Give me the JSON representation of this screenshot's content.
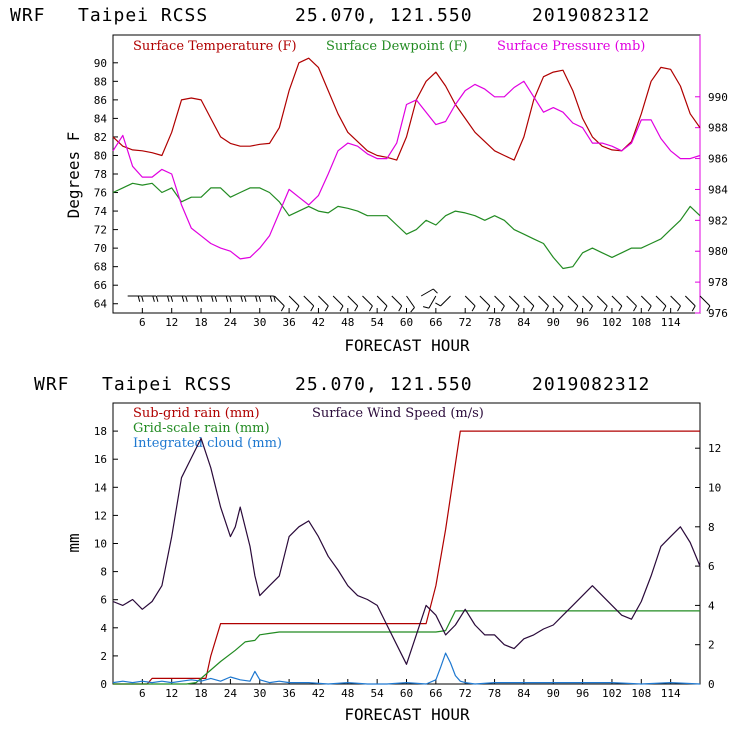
{
  "colors": {
    "temp": "#b00000",
    "dew": "#228b22",
    "press": "#e000e0",
    "wind": "#2a0a3a",
    "subgrid": "#b00000",
    "gridscale": "#228b22",
    "cloud": "#1e78d0",
    "axis": "#000000",
    "right_axis_top": "#e000e0"
  },
  "chart_data": [
    {
      "type": "line",
      "header": {
        "model": "WRF",
        "site": "Taipei RCSS",
        "coords": "25.070, 121.550",
        "init": "2019082312"
      },
      "xlabel": "FORECAST HOUR",
      "ylabel": "Degrees F",
      "xlim": [
        0,
        120
      ],
      "ylim": [
        63,
        93
      ],
      "ylim_right": [
        976,
        994
      ],
      "xticks": [
        6,
        12,
        18,
        24,
        30,
        36,
        42,
        48,
        54,
        60,
        66,
        72,
        78,
        84,
        90,
        96,
        102,
        108,
        114
      ],
      "xtick_labels": [
        "6",
        "12",
        "18",
        "24",
        "30",
        "36",
        "42",
        "48",
        "54",
        "60",
        "66",
        "72",
        "78",
        "84",
        "90",
        "96",
        "102",
        "108",
        "114"
      ],
      "yticks": [
        64,
        66,
        68,
        70,
        72,
        74,
        76,
        78,
        80,
        82,
        84,
        86,
        88,
        90
      ],
      "ytick_labels": [
        "64",
        "66",
        "68",
        "70",
        "72",
        "74",
        "76",
        "78",
        "80",
        "82",
        "84",
        "86",
        "88",
        "90"
      ],
      "yticks_right": [
        976,
        978,
        980,
        982,
        984,
        986,
        988,
        990
      ],
      "ytick_labels_right": [
        "976",
        "978",
        "980",
        "982",
        "984",
        "986",
        "988",
        "990"
      ],
      "series": [
        {
          "name": "Surface Temperature (F)",
          "axis": "left",
          "x": [
            0,
            2,
            4,
            6,
            8,
            10,
            12,
            14,
            16,
            18,
            20,
            22,
            24,
            26,
            28,
            30,
            32,
            34,
            36,
            38,
            40,
            42,
            44,
            46,
            48,
            50,
            52,
            54,
            56,
            58,
            60,
            62,
            64,
            66,
            68,
            70,
            72,
            74,
            76,
            78,
            80,
            82,
            84,
            86,
            88,
            90,
            92,
            94,
            96,
            98,
            100,
            102,
            104,
            106,
            108,
            110,
            112,
            114,
            116,
            118,
            120
          ],
          "values": [
            82.0,
            81.0,
            80.6,
            80.5,
            80.3,
            80.0,
            82.5,
            86.0,
            86.2,
            86.0,
            84.0,
            82.0,
            81.3,
            81.0,
            81.0,
            81.2,
            81.3,
            83.0,
            87.0,
            90.0,
            90.5,
            89.5,
            87.0,
            84.5,
            82.5,
            81.5,
            80.5,
            80.0,
            79.8,
            79.5,
            82.0,
            86.0,
            88.0,
            89.0,
            87.5,
            85.5,
            84.0,
            82.5,
            81.5,
            80.5,
            80.0,
            79.5,
            82.0,
            86.0,
            88.5,
            89.0,
            89.2,
            87.0,
            84.0,
            82.0,
            81.0,
            80.6,
            80.5,
            81.5,
            84.5,
            88.0,
            89.5,
            89.3,
            87.5,
            84.5,
            83.0
          ]
        },
        {
          "name": "Surface Dewpoint (F)",
          "axis": "left",
          "x": [
            0,
            2,
            4,
            6,
            8,
            10,
            12,
            14,
            16,
            18,
            20,
            22,
            24,
            26,
            28,
            30,
            32,
            34,
            36,
            38,
            40,
            42,
            44,
            46,
            48,
            50,
            52,
            54,
            56,
            58,
            60,
            62,
            64,
            66,
            68,
            70,
            72,
            74,
            76,
            78,
            80,
            82,
            84,
            86,
            88,
            90,
            92,
            94,
            96,
            98,
            100,
            102,
            104,
            106,
            108,
            110,
            112,
            114,
            116,
            118,
            120
          ],
          "values": [
            76.0,
            76.5,
            77.0,
            76.8,
            77.0,
            76.0,
            76.5,
            75.0,
            75.5,
            75.5,
            76.5,
            76.5,
            75.5,
            76.0,
            76.5,
            76.5,
            76.0,
            75.0,
            73.5,
            74.0,
            74.5,
            74.0,
            73.8,
            74.5,
            74.3,
            74.0,
            73.5,
            73.5,
            73.5,
            72.5,
            71.5,
            72.0,
            73.0,
            72.5,
            73.5,
            74.0,
            73.8,
            73.5,
            73.0,
            73.5,
            73.0,
            72.0,
            71.5,
            71.0,
            70.5,
            69.0,
            67.8,
            68.0,
            69.5,
            70.0,
            69.5,
            69.0,
            69.5,
            70.0,
            70.0,
            70.5,
            71.0,
            72.0,
            73.0,
            74.5,
            73.5
          ]
        },
        {
          "name": "Surface Pressure (mb)",
          "axis": "right",
          "x": [
            0,
            2,
            4,
            6,
            8,
            10,
            12,
            14,
            16,
            18,
            20,
            22,
            24,
            26,
            28,
            30,
            32,
            34,
            36,
            38,
            40,
            42,
            44,
            46,
            48,
            50,
            52,
            54,
            56,
            58,
            60,
            62,
            64,
            66,
            68,
            70,
            72,
            74,
            76,
            78,
            80,
            82,
            84,
            86,
            88,
            90,
            92,
            94,
            96,
            98,
            100,
            102,
            104,
            106,
            108,
            110,
            112,
            114,
            116,
            118,
            120
          ],
          "values": [
            986.5,
            987.5,
            985.5,
            984.8,
            984.8,
            985.3,
            985.0,
            983.0,
            981.5,
            981.0,
            980.5,
            980.2,
            980.0,
            979.5,
            979.6,
            980.2,
            981.0,
            982.5,
            984.0,
            983.5,
            983.0,
            983.6,
            985.0,
            986.5,
            987.0,
            986.8,
            986.3,
            986.0,
            986.0,
            987.0,
            989.5,
            989.8,
            989.0,
            988.2,
            988.4,
            989.5,
            990.4,
            990.8,
            990.5,
            990.0,
            990.0,
            990.6,
            991.0,
            990.0,
            989.0,
            989.3,
            989.0,
            988.3,
            988.0,
            987.0,
            987.0,
            986.8,
            986.5,
            987.0,
            988.5,
            988.5,
            987.3,
            986.5,
            986.0,
            986.0,
            986.2
          ]
        }
      ],
      "wind_barbs": {
        "type": "barbs",
        "x": [
          3,
          6,
          9,
          12,
          15,
          18,
          21,
          24,
          27,
          30,
          33,
          36,
          39,
          42,
          45,
          48,
          51,
          54,
          57,
          60,
          63,
          66,
          69,
          72,
          75,
          78,
          81,
          84,
          87,
          90,
          93,
          96,
          99,
          102,
          105,
          108,
          111,
          114,
          117,
          120
        ],
        "direction_deg": [
          90,
          90,
          90,
          90,
          90,
          90,
          90,
          90,
          90,
          90,
          135,
          135,
          135,
          135,
          135,
          135,
          135,
          135,
          135,
          145,
          60,
          210,
          225,
          135,
          135,
          135,
          135,
          135,
          135,
          135,
          135,
          135,
          135,
          135,
          135,
          135,
          135,
          135,
          135,
          135
        ],
        "speed_kt": [
          20,
          20,
          20,
          20,
          20,
          20,
          20,
          20,
          20,
          20,
          10,
          10,
          10,
          10,
          10,
          10,
          10,
          10,
          10,
          10,
          10,
          10,
          10,
          10,
          10,
          10,
          10,
          10,
          10,
          10,
          10,
          10,
          10,
          10,
          10,
          10,
          10,
          10,
          10,
          10
        ]
      }
    },
    {
      "type": "line",
      "header": {
        "model": "WRF",
        "site": "Taipei RCSS",
        "coords": "25.070, 121.550",
        "init": "2019082312"
      },
      "xlabel": "FORECAST HOUR",
      "ylabel": "mm",
      "xlim": [
        0,
        120
      ],
      "ylim": [
        0,
        20
      ],
      "ylim_right": [
        0,
        14.3
      ],
      "xticks": [
        6,
        12,
        18,
        24,
        30,
        36,
        42,
        48,
        54,
        60,
        66,
        72,
        78,
        84,
        90,
        96,
        102,
        108,
        114
      ],
      "xtick_labels": [
        "6",
        "12",
        "18",
        "24",
        "30",
        "36",
        "42",
        "48",
        "54",
        "60",
        "66",
        "72",
        "78",
        "84",
        "90",
        "96",
        "102",
        "108",
        "114"
      ],
      "yticks": [
        0,
        2,
        4,
        6,
        8,
        10,
        12,
        14,
        16,
        18
      ],
      "ytick_labels": [
        "0",
        "2",
        "4",
        "6",
        "8",
        "10",
        "12",
        "14",
        "16",
        "18"
      ],
      "yticks_right": [
        0,
        2,
        4,
        6,
        8,
        10,
        12
      ],
      "ytick_labels_right": [
        "0",
        "2",
        "4",
        "6",
        "8",
        "10",
        "12"
      ],
      "series": [
        {
          "name": "Sub-grid rain (mm)",
          "axis": "left",
          "x": [
            0,
            7,
            8,
            19,
            20,
            22,
            58,
            64,
            66,
            68,
            71,
            120
          ],
          "values": [
            0,
            0,
            0.4,
            0.4,
            2.0,
            4.3,
            4.3,
            4.3,
            7.0,
            11.0,
            18.0,
            18.0
          ]
        },
        {
          "name": "Grid-scale rain (mm)",
          "axis": "left",
          "x": [
            0,
            15,
            17,
            20,
            22,
            25,
            27,
            29,
            30,
            32,
            34,
            60,
            66,
            68,
            70,
            120
          ],
          "values": [
            0,
            0,
            0.1,
            1.0,
            1.6,
            2.4,
            3.0,
            3.1,
            3.5,
            3.6,
            3.7,
            3.7,
            3.7,
            3.8,
            5.2,
            5.2
          ]
        },
        {
          "name": "Integrated cloud (mm)",
          "axis": "left",
          "x": [
            0,
            2,
            4,
            6,
            8,
            10,
            12,
            14,
            16,
            18,
            20,
            22,
            24,
            26,
            28,
            29,
            30,
            32,
            34,
            36,
            40,
            44,
            48,
            52,
            56,
            60,
            64,
            66,
            67,
            68,
            69,
            70,
            71,
            72,
            74,
            78,
            84,
            90,
            96,
            102,
            108,
            114,
            120
          ],
          "values": [
            0.1,
            0.2,
            0.1,
            0.2,
            0.1,
            0.2,
            0.1,
            0.2,
            0.3,
            0.2,
            0.4,
            0.2,
            0.5,
            0.3,
            0.2,
            0.9,
            0.3,
            0.1,
            0.2,
            0.1,
            0.1,
            0.0,
            0.1,
            0.0,
            0.0,
            0.1,
            0.0,
            0.3,
            1.2,
            2.2,
            1.5,
            0.6,
            0.2,
            0.1,
            0.0,
            0.1,
            0.1,
            0.1,
            0.1,
            0.1,
            0.0,
            0.1,
            0.0
          ]
        },
        {
          "name": "Surface Wind Speed (m/s)",
          "axis": "right",
          "x": [
            0,
            2,
            4,
            6,
            8,
            10,
            12,
            14,
            16,
            18,
            20,
            22,
            24,
            25,
            26,
            28,
            29,
            30,
            32,
            34,
            36,
            38,
            40,
            42,
            44,
            46,
            48,
            50,
            52,
            54,
            56,
            58,
            60,
            62,
            64,
            66,
            68,
            70,
            72,
            74,
            76,
            78,
            80,
            82,
            84,
            86,
            88,
            90,
            92,
            94,
            96,
            98,
            100,
            102,
            104,
            106,
            108,
            110,
            112,
            114,
            116,
            118,
            120
          ],
          "values": [
            4.2,
            4.0,
            4.3,
            3.8,
            4.2,
            5.0,
            7.5,
            10.5,
            11.5,
            12.5,
            11.0,
            9.0,
            7.5,
            8.0,
            9.0,
            7.0,
            5.5,
            4.5,
            5.0,
            5.5,
            7.5,
            8.0,
            8.3,
            7.5,
            6.5,
            5.8,
            5.0,
            4.5,
            4.3,
            4.0,
            3.0,
            2.0,
            1.0,
            2.5,
            4.0,
            3.5,
            2.5,
            3.0,
            3.8,
            3.0,
            2.5,
            2.5,
            2.0,
            1.8,
            2.3,
            2.5,
            2.8,
            3.0,
            3.5,
            4.0,
            4.5,
            5.0,
            4.5,
            4.0,
            3.5,
            3.3,
            4.2,
            5.5,
            7.0,
            7.5,
            8.0,
            7.2,
            6.0
          ]
        }
      ]
    }
  ]
}
